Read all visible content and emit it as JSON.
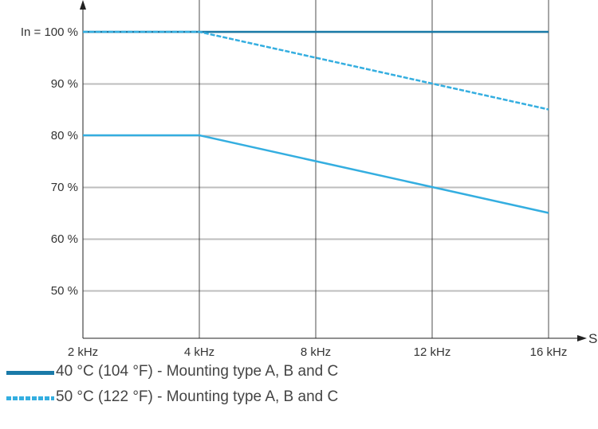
{
  "chart_data": {
    "type": "line",
    "title": "",
    "xlabel": "SF",
    "ylabel": "",
    "categories": [
      "2 kHz",
      "4 kHz",
      "8 kHz",
      "12 kHz",
      "16 kHz"
    ],
    "y_tick_labels": [
      "In = 100 %",
      "90 %",
      "80 %",
      "70 %",
      "60 %",
      "50 %"
    ],
    "y_tick_values": [
      100,
      90,
      80,
      70,
      60,
      50
    ],
    "ylim": [
      50,
      100
    ],
    "grid": true,
    "series": [
      {
        "name": "40 °C (104 °F) - Mounting type A, B and C",
        "style": "solid",
        "color": "#1a7aa8",
        "values": [
          100,
          100,
          100,
          100,
          100
        ]
      },
      {
        "name": "50 °C (122 °F) - Mounting type A, B and C",
        "style": "dashed",
        "color": "#34aee0",
        "values": [
          100,
          100,
          95,
          90,
          85
        ]
      },
      {
        "name": "",
        "style": "solid",
        "color": "#34aee0",
        "values": [
          80,
          80,
          75,
          70,
          65
        ]
      }
    ]
  },
  "legend": [
    {
      "label": "40 °C (104 °F) - Mounting type A, B and C",
      "style": "solid"
    },
    {
      "label": "50 °C (122 °F) - Mounting type A, B and C",
      "style": "dashed"
    }
  ]
}
